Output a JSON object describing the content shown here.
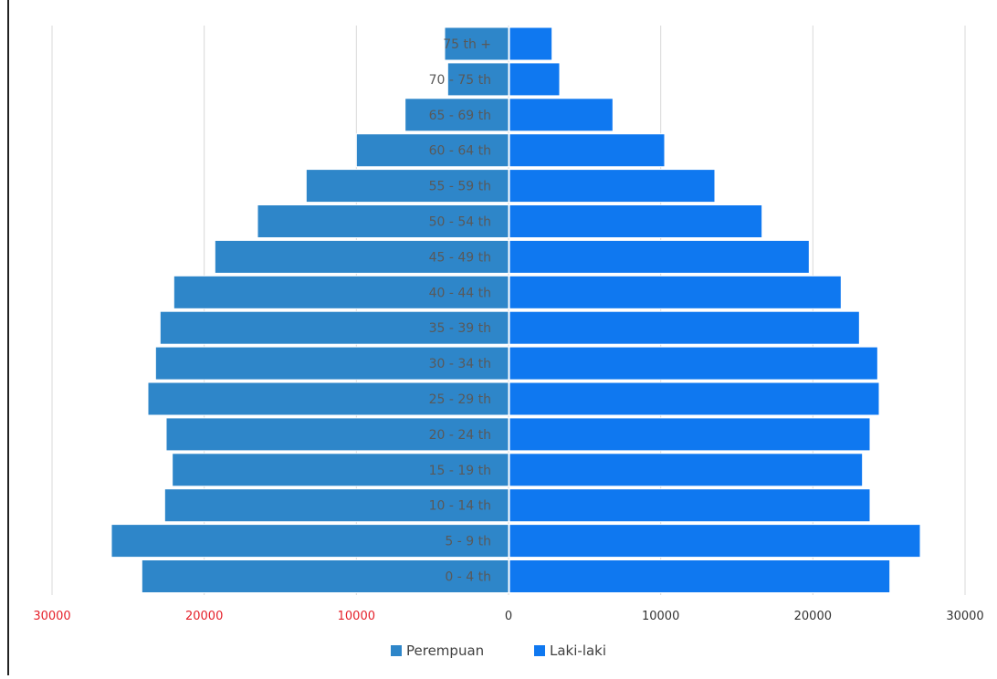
{
  "chart_data": {
    "type": "bar",
    "orientation": "horizontal",
    "categories": [
      "0 - 4 th",
      "5 - 9 th",
      "10 - 14 th",
      "15 - 19 th",
      "20 - 24 th",
      "25 - 29 th",
      "30 - 34 th",
      "35 - 39 th",
      "40 - 44 th",
      "45 - 49 th",
      "50 - 54 th",
      "55 - 59 th",
      "60 - 64 th",
      "65 - 69 th",
      "70 - 75 th",
      "75 th +"
    ],
    "series": [
      {
        "name": "Perempuan",
        "color": "#2e86c9",
        "side": "left",
        "values": [
          24100,
          26100,
          22600,
          22100,
          22500,
          23700,
          23200,
          22900,
          22000,
          19300,
          16500,
          13300,
          10000,
          6800,
          4000,
          4200
        ]
      },
      {
        "name": "Laki-laki",
        "color": "#0f78f0",
        "side": "right",
        "values": [
          25000,
          27000,
          23700,
          23200,
          23700,
          24300,
          24200,
          23000,
          21800,
          19700,
          16600,
          13500,
          10200,
          6800,
          3300,
          2800
        ]
      }
    ],
    "x_ticks": [
      "30000",
      "20000",
      "10000",
      "0",
      "10000",
      "20000",
      "30000"
    ],
    "x_tick_values": [
      -30000,
      -20000,
      -10000,
      0,
      10000,
      20000,
      30000
    ],
    "xlim": [
      -30000,
      30000
    ],
    "tick_label_colors": {
      "left": "#e5202a",
      "zero": "#333333",
      "right": "#333333"
    },
    "category_label_color": "#595959",
    "grid": true,
    "grid_color": "#d9d9d9",
    "legend": "bottom",
    "title": "",
    "xlabel": "",
    "ylabel": ""
  }
}
